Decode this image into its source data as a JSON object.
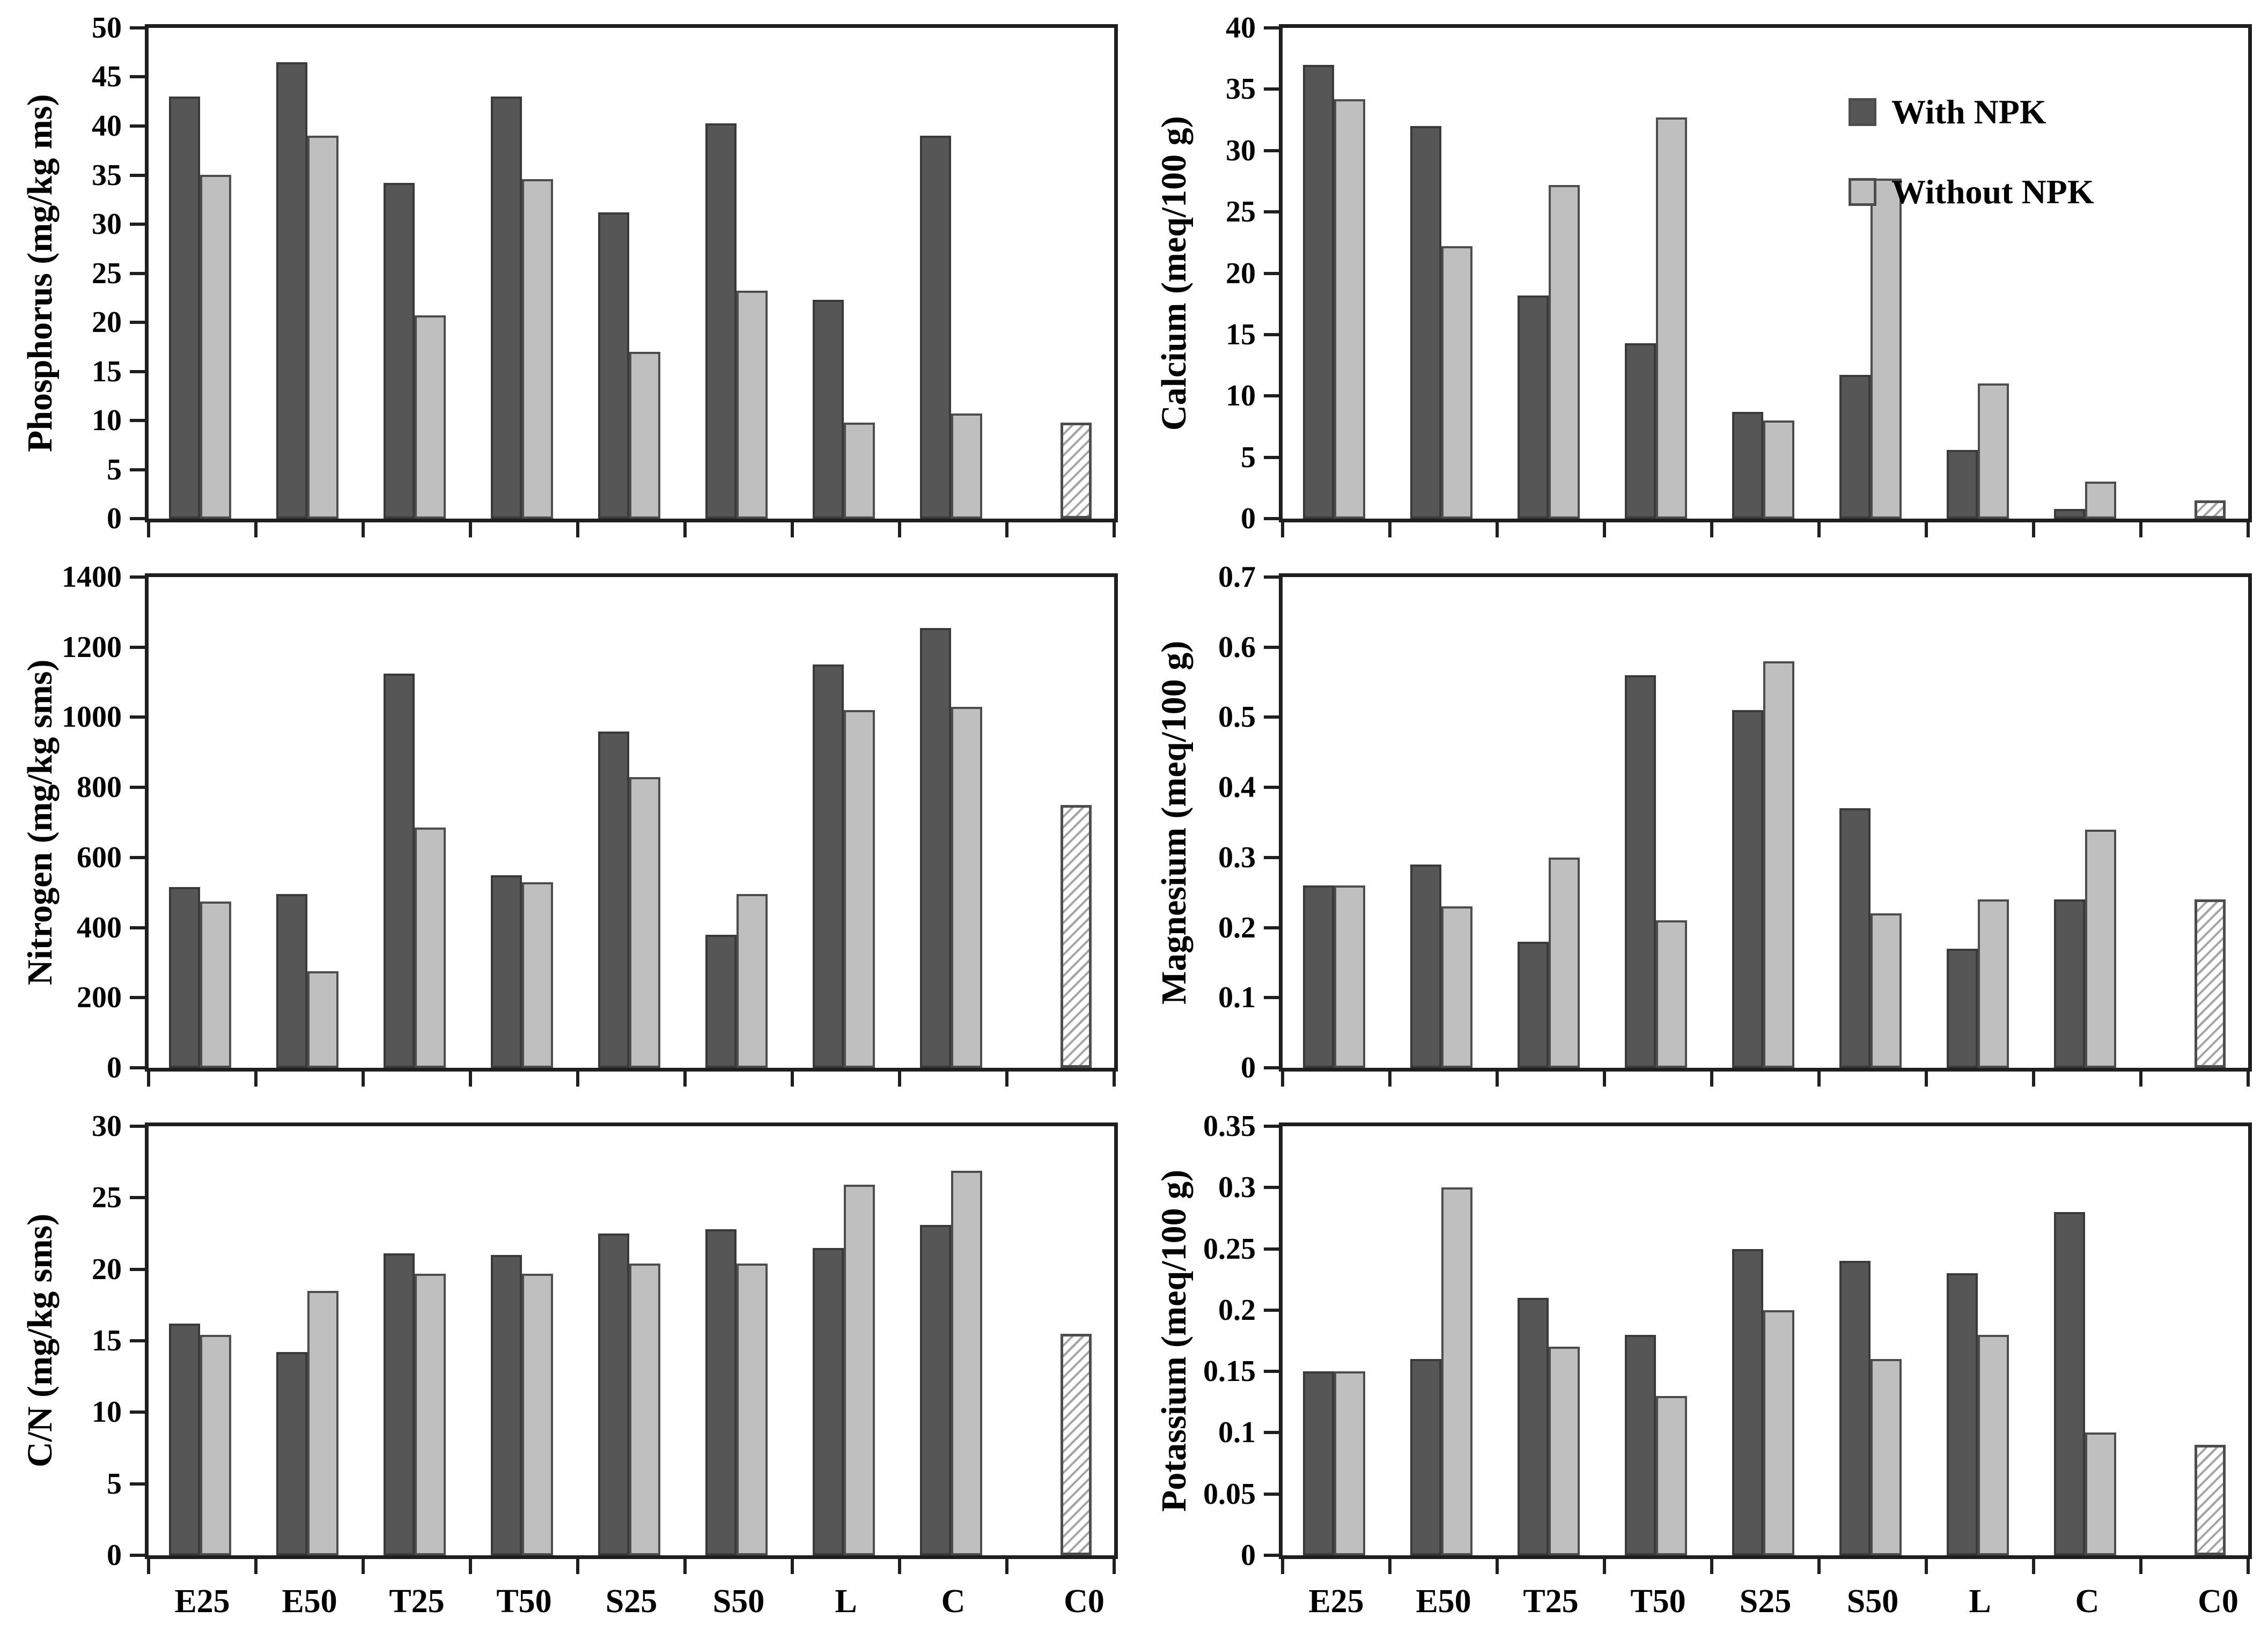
{
  "figure": {
    "description": "Six-panel grouped bar chart figure comparing soil/substrate chemical properties with and without NPK fertilization across treatments",
    "columns": 2,
    "rows": 3
  },
  "colors": {
    "with_npk_fill": "#565656",
    "without_npk_fill": "#bfbfbf",
    "bar_border": "#4d4d4d",
    "axis": "#1f1f1f",
    "hatch_line": "#a3a3a3",
    "background": "#ffffff"
  },
  "categories": [
    "E25",
    "E50",
    "T25",
    "T50",
    "S25",
    "S50",
    "L",
    "C",
    "C0"
  ],
  "legend": {
    "position": "top-right-of-calcium-panel",
    "items": [
      {
        "label": "With NPK",
        "color": "#565656"
      },
      {
        "label": "Without NPK",
        "color": "#bfbfbf"
      }
    ]
  },
  "chart_data": [
    {
      "type": "bar",
      "id": "phosphorus",
      "ylabel": "Phosphorus (mg/kg ms)",
      "ylim": [
        0,
        50
      ],
      "ytick_labels": [
        "0",
        "5",
        "10",
        "15",
        "20",
        "25",
        "30",
        "35",
        "40",
        "45",
        "50"
      ],
      "row": 0,
      "col": 0,
      "show_xlabels": false,
      "show_legend": false,
      "grid": false,
      "series": [
        {
          "name": "With NPK",
          "values": [
            43,
            46.5,
            34.2,
            43,
            31.2,
            40.3,
            22.3,
            39,
            null
          ]
        },
        {
          "name": "Without NPK",
          "values": [
            35,
            39,
            20.7,
            34.6,
            17,
            23.2,
            9.8,
            10.7,
            null
          ]
        }
      ],
      "control": {
        "category": "C0",
        "value": 9.8,
        "style": "hatched"
      }
    },
    {
      "type": "bar",
      "id": "calcium",
      "ylabel": "Calcium (meq/100 g)",
      "ylim": [
        0,
        40
      ],
      "ytick_labels": [
        "0",
        "5",
        "10",
        "15",
        "20",
        "25",
        "30",
        "35",
        "40"
      ],
      "row": 0,
      "col": 1,
      "show_xlabels": false,
      "show_legend": true,
      "grid": false,
      "series": [
        {
          "name": "With NPK",
          "values": [
            37,
            32,
            18.2,
            14.3,
            8.7,
            11.7,
            5.6,
            0.8,
            null
          ]
        },
        {
          "name": "Without NPK",
          "values": [
            34.2,
            22.2,
            27.2,
            32.7,
            8,
            27.7,
            11,
            3,
            null
          ]
        }
      ],
      "control": {
        "category": "C0",
        "value": 1.5,
        "style": "hatched"
      }
    },
    {
      "type": "bar",
      "id": "nitrogen",
      "ylabel": "Nitrogen (mg/kg sms)",
      "ylim": [
        0,
        1400
      ],
      "ytick_labels": [
        "0",
        "200",
        "400",
        "600",
        "800",
        "1000",
        "1200",
        "1400"
      ],
      "row": 1,
      "col": 0,
      "show_xlabels": false,
      "show_legend": false,
      "grid": false,
      "series": [
        {
          "name": "With NPK",
          "values": [
            515,
            495,
            1125,
            550,
            960,
            380,
            1150,
            1255,
            null
          ]
        },
        {
          "name": "Without NPK",
          "values": [
            475,
            275,
            685,
            530,
            830,
            495,
            1020,
            1030,
            null
          ]
        }
      ],
      "control": {
        "category": "C0",
        "value": 750,
        "style": "hatched"
      }
    },
    {
      "type": "bar",
      "id": "magnesium",
      "ylabel": "Magnesium (meq/100 g)",
      "ylim": [
        0,
        0.7
      ],
      "ytick_labels": [
        "0",
        "0.1",
        "0.2",
        "0.3",
        "0.4",
        "0.5",
        "0.6",
        "0.7"
      ],
      "row": 1,
      "col": 1,
      "show_xlabels": false,
      "show_legend": false,
      "grid": false,
      "series": [
        {
          "name": "With NPK",
          "values": [
            0.26,
            0.29,
            0.18,
            0.56,
            0.51,
            0.37,
            0.17,
            0.24,
            null
          ]
        },
        {
          "name": "Without NPK",
          "values": [
            0.26,
            0.23,
            0.3,
            0.21,
            0.58,
            0.22,
            0.24,
            0.34,
            null
          ]
        }
      ],
      "control": {
        "category": "C0",
        "value": 0.24,
        "style": "hatched"
      }
    },
    {
      "type": "bar",
      "id": "cn-ratio",
      "ylabel": "C/N (mg/kg sms)",
      "ylim": [
        0,
        30
      ],
      "ytick_labels": [
        "0",
        "5",
        "10",
        "15",
        "20",
        "25",
        "30"
      ],
      "row": 2,
      "col": 0,
      "show_xlabels": true,
      "show_legend": false,
      "grid": false,
      "series": [
        {
          "name": "With NPK",
          "values": [
            16.2,
            14.2,
            21.1,
            21,
            22.5,
            22.8,
            21.5,
            23.1,
            null
          ]
        },
        {
          "name": "Without NPK",
          "values": [
            15.4,
            18.5,
            19.7,
            19.7,
            20.4,
            20.4,
            25.9,
            26.9,
            null
          ]
        }
      ],
      "control": {
        "category": "C0",
        "value": 15.5,
        "style": "hatched"
      }
    },
    {
      "type": "bar",
      "id": "potassium",
      "ylabel": "Potassium (meq/100 g)",
      "ylim": [
        0,
        0.35
      ],
      "ytick_labels": [
        "0",
        "0.05",
        "0.1",
        "0.15",
        "0.2",
        "0.25",
        "0.3",
        "0.35"
      ],
      "row": 2,
      "col": 1,
      "show_xlabels": true,
      "show_legend": false,
      "grid": false,
      "series": [
        {
          "name": "With NPK",
          "values": [
            0.15,
            0.16,
            0.21,
            0.18,
            0.25,
            0.24,
            0.23,
            0.28,
            null
          ]
        },
        {
          "name": "Without NPK",
          "values": [
            0.15,
            0.3,
            0.17,
            0.13,
            0.2,
            0.16,
            0.18,
            0.1,
            null
          ]
        }
      ],
      "control": {
        "category": "C0",
        "value": 0.09,
        "style": "hatched"
      }
    }
  ]
}
